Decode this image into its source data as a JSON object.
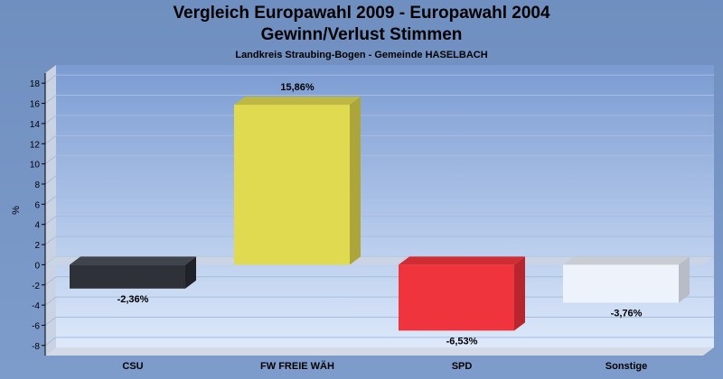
{
  "chart_data": {
    "type": "bar",
    "title_line1": "Vergleich Europawahl 2009 - Europawahl 2004",
    "title_line2": "Gewinn/Verlust Stimmen",
    "subtitle": "Landkreis Straubing-Bogen - Gemeinde HASELBACH",
    "ylabel": "%",
    "xlabel": "",
    "ylim": [
      -9,
      19
    ],
    "yticks": [
      18,
      16,
      14,
      12,
      10,
      8,
      6,
      4,
      2,
      0,
      -2,
      -4,
      -6,
      -8
    ],
    "grid": true,
    "categories": [
      "CSU",
      "FW FREIE WÄH",
      "SPD",
      "Sonstige"
    ],
    "values": [
      -2.36,
      15.86,
      -6.53,
      -3.76
    ],
    "value_labels": [
      "-2,36%",
      "15,86%",
      "-6,53%",
      "-3,76%"
    ],
    "colors": [
      "#2e3138",
      "#e0da50",
      "#f0343e",
      "#eef3fb"
    ],
    "side_colors": [
      "#1f2227",
      "#aca63a",
      "#b8262d",
      "#b8bcc6"
    ],
    "top_colors": [
      "#40444c",
      "#bdb744",
      "#d02c34",
      "#c9ccd3"
    ]
  }
}
